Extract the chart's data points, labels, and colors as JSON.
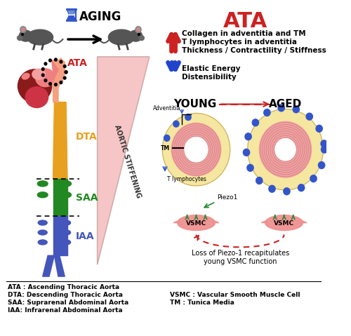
{
  "title": "ATA",
  "aging_label": "AGING",
  "aortic_stiffening_label": "AORTIC\nSTIFFENING",
  "young_label": "YOUNG",
  "aged_label": "AGED",
  "ata_label": "ATA",
  "dta_label": "DTA",
  "saa_label": "SAA",
  "iaa_label": "IAA",
  "up_items": [
    "Collagen in adventitia and TM",
    "T lymphocytes in adventitia",
    "Thickness / Contractility / Stiffness"
  ],
  "down_items": [
    "Elastic Energy",
    "Distensibility"
  ],
  "vsmc_label": "VSMC",
  "piezo1_label": "Piezo1",
  "t_lymphocytes_label": "T lymphocytes",
  "adventitia_label": "Adventitia",
  "tm_label": "TM",
  "loss_label": "Loss of Piezo-1 recapitulates\nyoung VSMC function",
  "abbrev_left": [
    "ATA : Ascending Thoracic Aorta",
    "DTA: Descending Thoracic Aorta",
    "SAA: Suprarenal Abdominal Aorta",
    "IAA: Infrarenal Abdominal Aorta"
  ],
  "abbrev_right": [
    "VSMC : Vascular Smooth Muscle Cell",
    "TM : Tunica Media"
  ],
  "bg_color": "#ffffff",
  "ata_color": "#cc2222",
  "dta_color": "#e8a020",
  "saa_color": "#228822",
  "iaa_color": "#4455bb",
  "triangle_color": "#f5c0c0",
  "up_arrow_color": "#cc2222",
  "down_arrow_color": "#2244cc",
  "outer_ring_color": "#f5e6a0",
  "inner_ring_color": "#f0a0a0",
  "lumen_color": "#ffffff",
  "dot_color": "#3355cc",
  "vsmc_color": "#f09090",
  "arrow_green": "#228833",
  "heart_color": "#cc3333",
  "heart_dark": "#8b1a1a",
  "aorta_pink": "#f5a0a0",
  "fig_width": 5.0,
  "fig_height": 4.79
}
